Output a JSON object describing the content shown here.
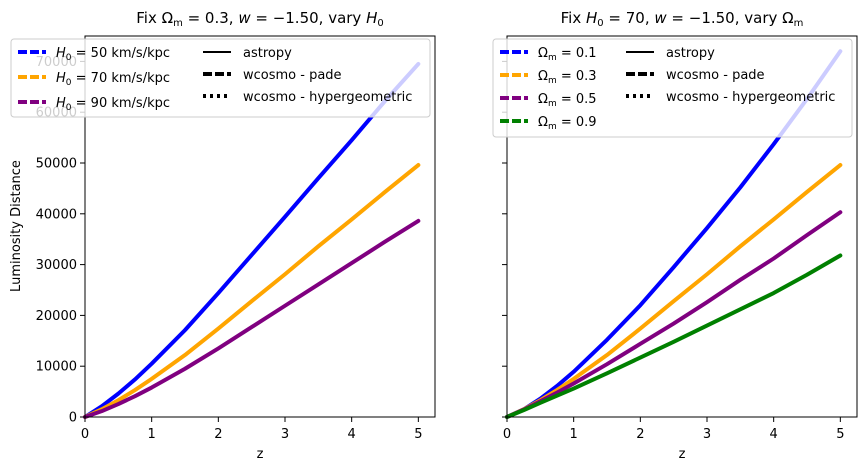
{
  "chart_data": [
    {
      "type": "line",
      "title": "Fix Ωm = 0.3, w = −1.50, vary H0",
      "xlabel": "z",
      "ylabel": "Luminosity Distance",
      "xlim": [
        0,
        5.25
      ],
      "ylim": [
        0,
        75000
      ],
      "xticks": [
        0,
        1,
        2,
        3,
        4,
        5
      ],
      "yticks": [
        0,
        10000,
        20000,
        30000,
        40000,
        50000,
        60000,
        70000
      ],
      "x": [
        0,
        0.25,
        0.5,
        0.75,
        1,
        1.5,
        2,
        2.5,
        3,
        3.5,
        4,
        4.5,
        5
      ],
      "series": [
        {
          "name": "H0 = 50 km/s/kpc",
          "color": "#0000ff",
          "values": [
            0,
            2100,
            4600,
            7400,
            10500,
            17100,
            24400,
            31900,
            39400,
            47000,
            54500,
            62200,
            69500
          ]
        },
        {
          "name": "H0 = 70 km/s/kpc",
          "color": "#ffa500",
          "values": [
            0,
            1500,
            3300,
            5300,
            7500,
            12200,
            17400,
            22800,
            28100,
            33600,
            38900,
            44300,
            49600
          ]
        },
        {
          "name": "H0 = 90 km/s/kpc",
          "color": "#800080",
          "values": [
            0,
            1150,
            2550,
            4100,
            5800,
            9500,
            13500,
            17700,
            21900,
            26100,
            30300,
            34500,
            38600
          ]
        }
      ],
      "style_legend": [
        "astropy",
        "wcosmo - pade",
        "wcosmo - hypergeometric"
      ],
      "legend_loc": "upper-left",
      "grid": false
    },
    {
      "type": "line",
      "title": "Fix H0 = 70, w = −1.50, vary Ωm",
      "xlabel": "z",
      "ylabel": "",
      "xlim": [
        0,
        5.25
      ],
      "ylim": [
        0,
        75000
      ],
      "xticks": [
        0,
        1,
        2,
        3,
        4,
        5
      ],
      "yticks": [
        0,
        10000,
        20000,
        30000,
        40000,
        50000,
        60000,
        70000
      ],
      "show_ytick_labels": false,
      "x": [
        0,
        0.25,
        0.5,
        0.75,
        1,
        1.5,
        2,
        2.5,
        3,
        3.5,
        4,
        4.5,
        5
      ],
      "series": [
        {
          "name": "Ωm = 0.1",
          "color": "#0000ff",
          "values": [
            0,
            1500,
            3600,
            6100,
            8900,
            15200,
            22000,
            29500,
            37200,
            45200,
            53700,
            62600,
            72000
          ]
        },
        {
          "name": "Ωm = 0.3",
          "color": "#ffa500",
          "values": [
            0,
            1500,
            3300,
            5300,
            7500,
            12200,
            17400,
            22800,
            28100,
            33600,
            38900,
            44300,
            49600
          ]
        },
        {
          "name": "Ωm = 0.5",
          "color": "#800080",
          "values": [
            0,
            1450,
            3100,
            4800,
            6600,
            10400,
            14400,
            18400,
            22600,
            27000,
            31200,
            35800,
            40300
          ]
        },
        {
          "name": "Ωm = 0.9",
          "color": "#008000",
          "values": [
            0,
            1350,
            2800,
            4200,
            5600,
            8600,
            11700,
            14800,
            18000,
            21200,
            24400,
            28000,
            31800
          ]
        }
      ],
      "style_legend": [
        "astropy",
        "wcosmo - pade",
        "wcosmo - hypergeometric"
      ],
      "legend_loc": "upper-left",
      "grid": false
    }
  ]
}
